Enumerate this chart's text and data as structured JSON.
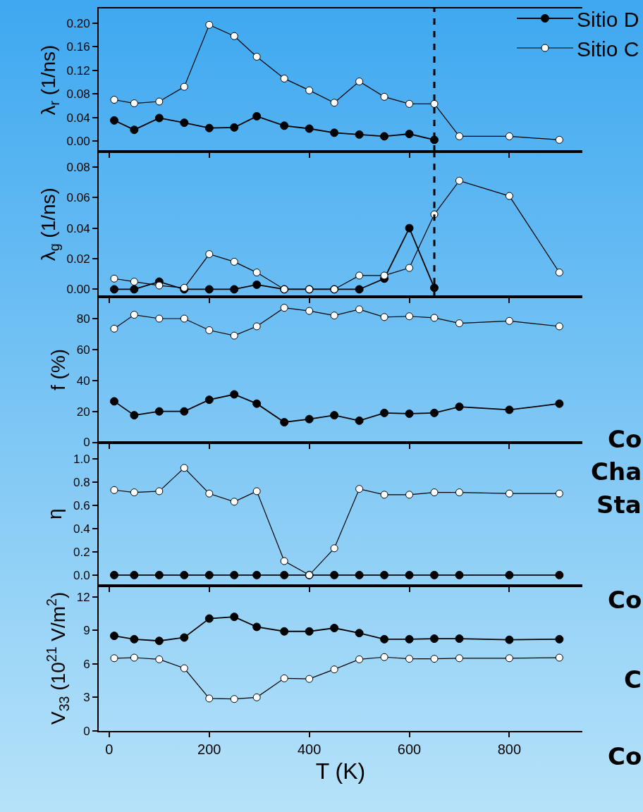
{
  "chart_data": [
    {
      "type": "line",
      "ylabel": "λ$_{r}$ (1/ns)",
      "x": [
        10,
        50,
        100,
        150,
        200,
        250,
        295,
        350,
        400,
        450,
        500,
        550,
        600,
        650,
        700,
        800,
        900
      ],
      "xlim": [
        -21,
        946
      ],
      "xticks": [
        0,
        200,
        400,
        600,
        800
      ],
      "ylim": [
        -0.018,
        0.225
      ],
      "yticks": [
        {
          "value": 0,
          "label": "0.00"
        },
        {
          "value": 0.04,
          "label": "0.04"
        },
        {
          "value": 0.08,
          "label": "0.08"
        },
        {
          "value": 0.12,
          "label": "0.12"
        },
        {
          "value": 0.16,
          "label": "0.16"
        },
        {
          "value": 0.2,
          "label": "0.20"
        }
      ],
      "tick_labels": "y",
      "legend": "top right",
      "marker": "circle",
      "ref_lines": [
        {
          "axis": "x",
          "value": 650,
          "color": "#000000",
          "line_style": "dashed"
        }
      ],
      "series": [
        {
          "name": "Sitio D",
          "color": "#000000",
          "values": [
            0.035,
            0.019,
            0.039,
            0.031,
            0.022,
            0.023,
            0.042,
            0.026,
            0.021,
            0.014,
            0.011,
            0.008,
            0.012,
            0.002,
            null,
            null,
            null
          ]
        },
        {
          "name": "Sitio C",
          "color": "#ffffff",
          "values": [
            0.07,
            0.064,
            0.067,
            0.092,
            0.197,
            0.178,
            0.143,
            0.106,
            0.086,
            0.065,
            0.101,
            0.075,
            0.063,
            0.063,
            0.008,
            0.008,
            0.002
          ]
        }
      ]
    },
    {
      "type": "line",
      "ylabel": "λ$_{g}$ (1/ns)",
      "x": [
        10,
        50,
        100,
        150,
        200,
        250,
        295,
        350,
        400,
        450,
        500,
        550,
        600,
        650,
        700,
        800,
        900
      ],
      "xlim": [
        -21,
        946
      ],
      "xticks": [
        0,
        200,
        400,
        600,
        800
      ],
      "ylim": [
        -0.005,
        0.09
      ],
      "yticks": [
        {
          "value": 0,
          "label": "0.00"
        },
        {
          "value": 0.02,
          "label": "0.02"
        },
        {
          "value": 0.04,
          "label": "0.04"
        },
        {
          "value": 0.06,
          "label": "0.06"
        },
        {
          "value": 0.08,
          "label": "0.08"
        }
      ],
      "tick_labels": "y",
      "marker": "circle",
      "ref_lines": [
        {
          "axis": "x",
          "value": 650,
          "color": "#000000",
          "line_style": "dashed"
        }
      ],
      "series": [
        {
          "color": "#000000",
          "values": [
            0,
            0,
            0.005,
            0,
            0,
            0,
            0.003,
            0,
            0,
            0,
            0,
            0.007,
            0.04,
            0.001,
            null,
            null,
            null
          ]
        },
        {
          "color": "#ffffff",
          "values": [
            0.007,
            0.005,
            0.0025,
            0.001,
            0.023,
            0.018,
            0.011,
            0,
            0,
            0,
            0.009,
            0.009,
            0.014,
            0.049,
            0.071,
            0.061,
            0.011
          ]
        }
      ]
    },
    {
      "type": "line",
      "ylabel": "f (%)",
      "x": [
        10,
        50,
        100,
        150,
        200,
        250,
        295,
        350,
        400,
        450,
        500,
        550,
        600,
        650,
        700,
        800,
        900
      ],
      "xlim": [
        -21,
        946
      ],
      "xticks": [
        0,
        200,
        400,
        600,
        800
      ],
      "ylim": [
        0,
        94
      ],
      "yticks": [
        0,
        20,
        40,
        60,
        80
      ],
      "tick_labels": "y",
      "marker": "circle",
      "series": [
        {
          "color": "#000000",
          "values": [
            26.5,
            17.5,
            20,
            20,
            27.5,
            31,
            25,
            13,
            15,
            17.5,
            14,
            19,
            18.5,
            19,
            23,
            21,
            25
          ]
        },
        {
          "color": "#ffffff",
          "values": [
            73.5,
            82.5,
            80,
            80,
            72.5,
            69,
            75,
            87,
            85,
            82,
            86,
            81,
            81.5,
            80.5,
            77,
            78.5,
            75
          ]
        }
      ]
    },
    {
      "type": "line",
      "ylabel": "η",
      "x": [
        10,
        50,
        100,
        150,
        200,
        250,
        295,
        350,
        400,
        450,
        500,
        550,
        600,
        650,
        700,
        800,
        900
      ],
      "xlim": [
        -21,
        946
      ],
      "xticks": [
        0,
        200,
        400,
        600,
        800
      ],
      "ylim": [
        -0.09,
        1.14
      ],
      "yticks": [
        {
          "value": 0,
          "label": "0.0"
        },
        {
          "value": 0.2,
          "label": "0.2"
        },
        {
          "value": 0.4,
          "label": "0.4"
        },
        {
          "value": 0.6,
          "label": "0.6"
        },
        {
          "value": 0.8,
          "label": "0.8"
        },
        {
          "value": 1,
          "label": "1.0"
        }
      ],
      "tick_labels": "y",
      "marker": "circle",
      "series": [
        {
          "color": "#000000",
          "values": [
            0,
            0,
            0,
            0,
            0,
            0,
            0,
            0,
            0,
            0,
            0,
            0,
            0,
            0,
            0,
            0,
            0
          ]
        },
        {
          "color": "#ffffff",
          "values": [
            0.73,
            0.71,
            0.72,
            0.92,
            0.7,
            0.63,
            0.72,
            0.12,
            0.0,
            0.23,
            0.74,
            0.69,
            0.69,
            0.71,
            0.71,
            0.7,
            0.7
          ]
        }
      ]
    },
    {
      "type": "line",
      "ylabel": "V$_{33}$ (10$^{21}$ V/m$^{2}$)",
      "xlabel": "T (K)",
      "x": [
        10,
        50,
        100,
        150,
        200,
        250,
        295,
        350,
        400,
        450,
        500,
        550,
        600,
        650,
        700,
        800,
        900
      ],
      "xlim": [
        -21,
        946
      ],
      "xticks": [
        0,
        200,
        400,
        600,
        800
      ],
      "ylim": [
        0,
        13
      ],
      "yticks": [
        0,
        3,
        6,
        9,
        12
      ],
      "marker": "circle",
      "series": [
        {
          "color": "#000000",
          "values": [
            8.5,
            8.2,
            8.05,
            8.35,
            10.05,
            10.2,
            9.3,
            8.9,
            8.9,
            9.2,
            8.75,
            8.2,
            8.2,
            8.25,
            8.25,
            8.15,
            8.2
          ]
        },
        {
          "color": "#ffffff",
          "values": [
            6.5,
            6.55,
            6.4,
            5.6,
            2.9,
            2.85,
            3.0,
            4.7,
            4.65,
            5.5,
            6.4,
            6.6,
            6.45,
            6.45,
            6.5,
            6.5,
            6.55
          ]
        }
      ]
    },
    {
      "type": "other",
      "annotations": [
        "Co",
        "Cha",
        "Sta",
        "Co",
        "C",
        "Co"
      ]
    }
  ]
}
